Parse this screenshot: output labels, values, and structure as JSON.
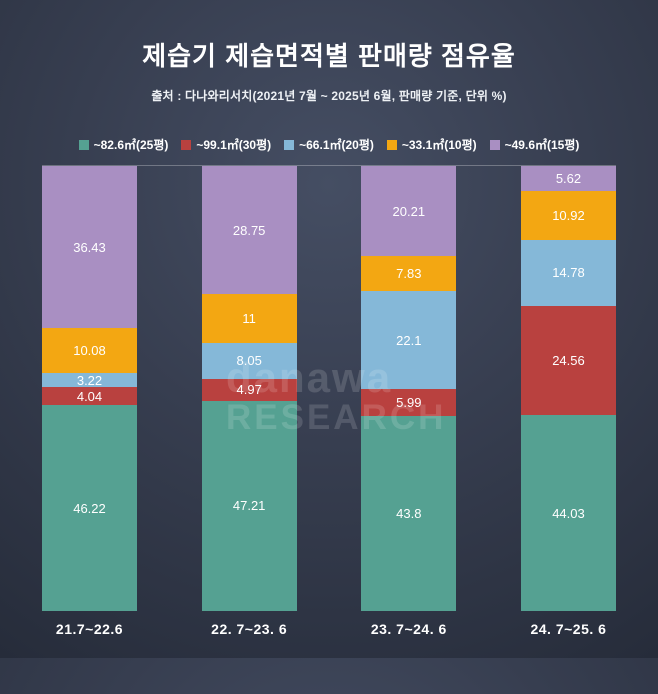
{
  "header": {
    "title": "제습기 제습면적별 판매량 점유율",
    "subtitle": "출처 : 다나와리서치(2021년 7월 ~ 2025년 6월, 판매량 기준, 단위 %)"
  },
  "watermark": {
    "line1": "danawa",
    "line2": "RESEARCH"
  },
  "colors": {
    "background_top": "#454e63",
    "background_bottom": "#262c3a",
    "text": "#ffffff",
    "axis_line": "rgba(255,255,255,0.28)"
  },
  "chart_data": {
    "type": "bar",
    "stacked": true,
    "percent_stacked": true,
    "unit": "%",
    "legend_position": "top",
    "ylim": [
      0,
      100
    ],
    "grid": false,
    "categories": [
      "21.7~22.6",
      "22. 7~23. 6",
      "23. 7~24. 6",
      "24. 7~25. 6"
    ],
    "series": [
      {
        "name": "~82.6㎡(25평)",
        "color": "#55a192",
        "values": [
          46.22,
          47.21,
          43.8,
          44.03
        ]
      },
      {
        "name": "~99.1㎡(30평)",
        "color": "#b9413f",
        "values": [
          4.04,
          4.97,
          5.99,
          24.56
        ]
      },
      {
        "name": "~66.1㎡(20평)",
        "color": "#85b8d8",
        "values": [
          3.22,
          8.05,
          22.1,
          14.78
        ]
      },
      {
        "name": "~33.1㎡(10평)",
        "color": "#f3a712",
        "values": [
          10.08,
          11,
          7.83,
          10.92
        ]
      },
      {
        "name": "~49.6㎡(15평)",
        "color": "#a98fc2",
        "values": [
          36.43,
          28.75,
          20.21,
          5.62
        ]
      }
    ]
  }
}
